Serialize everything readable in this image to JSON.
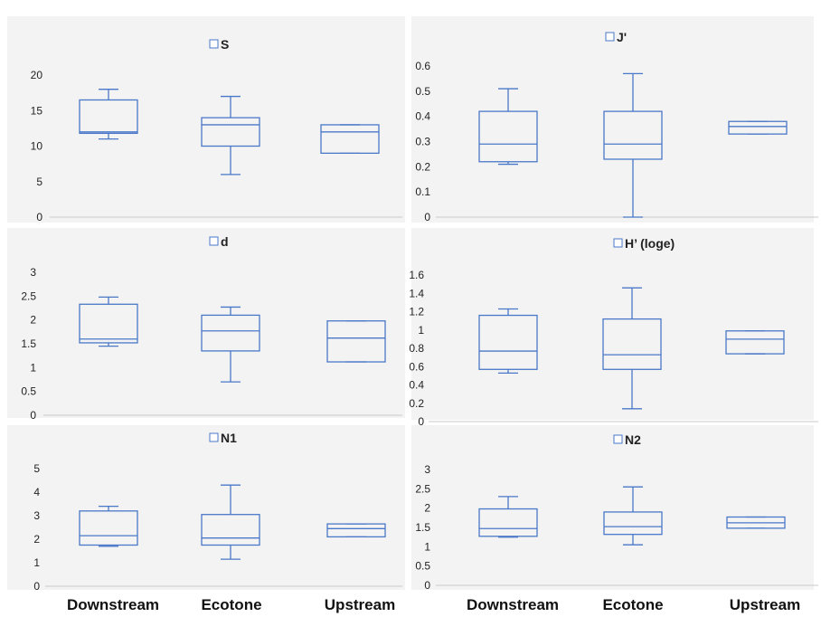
{
  "x_axis_labels": [
    "Downstream",
    "Ecotone",
    "Upstream"
  ],
  "colors": {
    "box": "#4a78c8",
    "panel_background": "#f3f3f3",
    "axis": "#c8c8c8"
  },
  "chart_data": [
    {
      "type": "boxplot",
      "title": "S",
      "legend": "top-center",
      "categories": [
        "Downstream",
        "Ecotone",
        "Upstream"
      ],
      "ylim": [
        0,
        20
      ],
      "yticks": [
        "0",
        "5",
        "10",
        "15",
        "20"
      ],
      "ytick_values": [
        0,
        5,
        10,
        15,
        20
      ],
      "boxes": [
        {
          "min": 11,
          "q1": 11.8,
          "median": 12,
          "q3": 16.5,
          "max": 18
        },
        {
          "min": 6,
          "q1": 10,
          "median": 13,
          "q3": 14,
          "max": 17
        },
        {
          "min": 9,
          "q1": 9,
          "median": 12,
          "q3": 13,
          "max": 13
        }
      ]
    },
    {
      "type": "boxplot",
      "title": "J'",
      "legend": "top-center",
      "categories": [
        "Downstream",
        "Ecotone",
        "Upstream"
      ],
      "ylim": [
        0,
        0.6
      ],
      "yticks": [
        "0",
        "0.1",
        "0.2",
        "0.3",
        "0.4",
        "0.5",
        "0.6"
      ],
      "ytick_values": [
        0,
        0.1,
        0.2,
        0.3,
        0.4,
        0.5,
        0.6
      ],
      "boxes": [
        {
          "min": 0.21,
          "q1": 0.22,
          "median": 0.29,
          "q3": 0.42,
          "max": 0.51
        },
        {
          "min": 0.0,
          "q1": 0.23,
          "median": 0.29,
          "q3": 0.42,
          "max": 0.57
        },
        {
          "min": 0.33,
          "q1": 0.33,
          "median": 0.36,
          "q3": 0.38,
          "max": 0.38
        }
      ]
    },
    {
      "type": "boxplot",
      "title": "d",
      "legend": "top-center",
      "categories": [
        "Downstream",
        "Ecotone",
        "Upstream"
      ],
      "ylim": [
        0,
        3
      ],
      "yticks": [
        "0",
        "0.5",
        "1",
        "1.5",
        "2",
        "2.5",
        "3"
      ],
      "ytick_values": [
        0,
        0.5,
        1,
        1.5,
        2,
        2.5,
        3
      ],
      "boxes": [
        {
          "min": 1.45,
          "q1": 1.52,
          "median": 1.6,
          "q3": 2.33,
          "max": 2.48
        },
        {
          "min": 0.7,
          "q1": 1.35,
          "median": 1.77,
          "q3": 2.1,
          "max": 2.27
        },
        {
          "min": 1.12,
          "q1": 1.12,
          "median": 1.62,
          "q3": 1.98,
          "max": 1.98
        }
      ]
    },
    {
      "type": "boxplot",
      "title": "H’ (loge)",
      "legend": "top-center",
      "categories": [
        "Downstream",
        "Ecotone",
        "Upstream"
      ],
      "ylim": [
        0,
        1.6
      ],
      "yticks": [
        "0",
        "0.2",
        "0.4",
        "0.6",
        "0.8",
        "1",
        "1.2",
        "1.4",
        "1.6"
      ],
      "ytick_values": [
        0,
        0.2,
        0.4,
        0.6,
        0.8,
        1,
        1.2,
        1.4,
        1.6
      ],
      "boxes": [
        {
          "min": 0.53,
          "q1": 0.57,
          "median": 0.77,
          "q3": 1.16,
          "max": 1.23
        },
        {
          "min": 0.14,
          "q1": 0.57,
          "median": 0.73,
          "q3": 1.12,
          "max": 1.46
        },
        {
          "min": 0.74,
          "q1": 0.74,
          "median": 0.9,
          "q3": 0.99,
          "max": 0.99
        }
      ]
    },
    {
      "type": "boxplot",
      "title": "N1",
      "legend": "top-center",
      "categories": [
        "Downstream",
        "Ecotone",
        "Upstream"
      ],
      "ylim": [
        0,
        5
      ],
      "yticks": [
        "0",
        "1",
        "2",
        "3",
        "4",
        "5"
      ],
      "ytick_values": [
        0,
        1,
        2,
        3,
        4,
        5
      ],
      "boxes": [
        {
          "min": 1.7,
          "q1": 1.75,
          "median": 2.15,
          "q3": 3.2,
          "max": 3.4
        },
        {
          "min": 1.15,
          "q1": 1.75,
          "median": 2.05,
          "q3": 3.05,
          "max": 4.3
        },
        {
          "min": 2.1,
          "q1": 2.1,
          "median": 2.45,
          "q3": 2.65,
          "max": 2.65
        }
      ]
    },
    {
      "type": "boxplot",
      "title": "N2",
      "legend": "top-center",
      "categories": [
        "Downstream",
        "Ecotone",
        "Upstream"
      ],
      "ylim": [
        0,
        3
      ],
      "yticks": [
        "0",
        "0.5",
        "1",
        "1.5",
        "2",
        "2.5",
        "3"
      ],
      "ytick_values": [
        0,
        0.5,
        1,
        1.5,
        2,
        2.5,
        3
      ],
      "boxes": [
        {
          "min": 1.25,
          "q1": 1.27,
          "median": 1.47,
          "q3": 1.98,
          "max": 2.3
        },
        {
          "min": 1.05,
          "q1": 1.32,
          "median": 1.52,
          "q3": 1.9,
          "max": 2.55
        },
        {
          "min": 1.48,
          "q1": 1.48,
          "median": 1.62,
          "q3": 1.77,
          "max": 1.77
        }
      ]
    }
  ]
}
